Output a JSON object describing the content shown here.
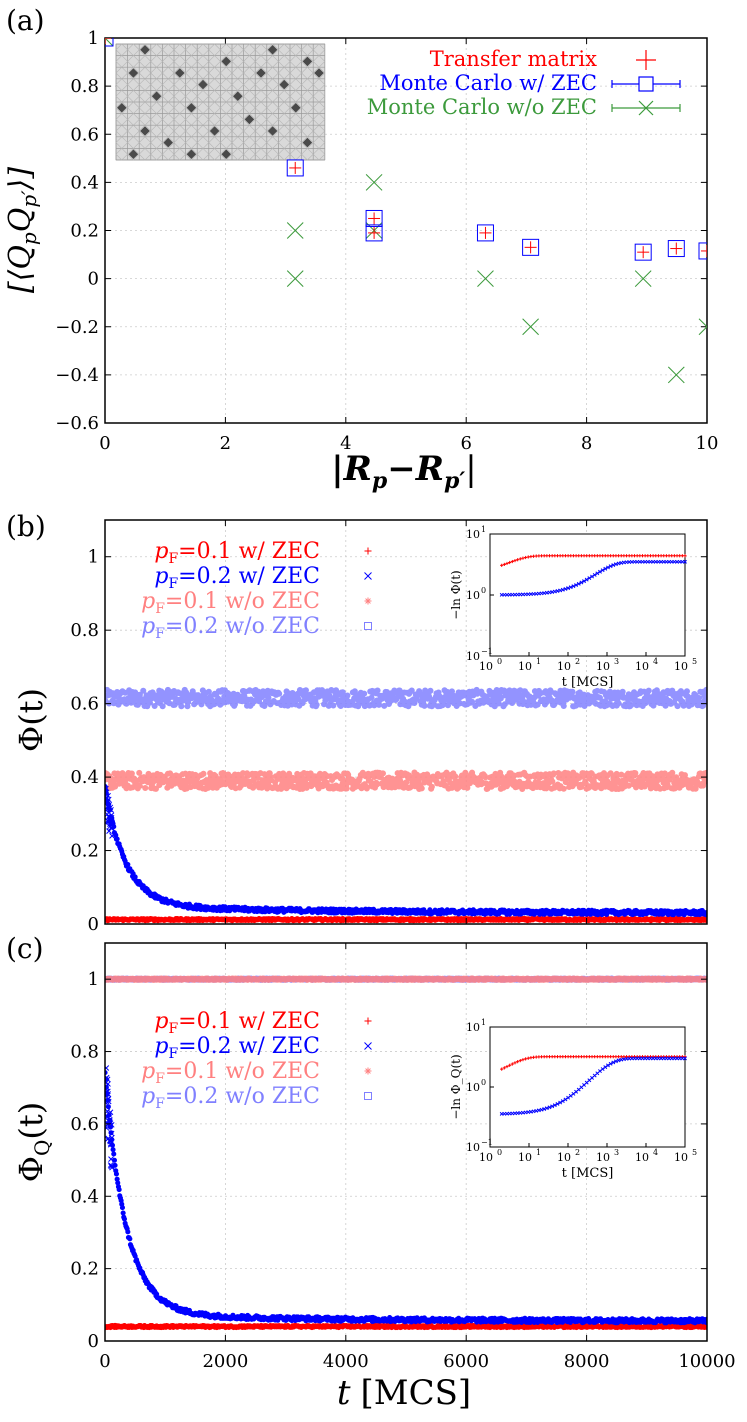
{
  "chart_data": [
    {
      "panel": "(a)",
      "type": "scatter",
      "ylabel": "[⟨Q_p Q_p'⟩]",
      "xlabel": "|R_p−R_p'|",
      "xlim": [
        0,
        10
      ],
      "ylim": [
        -0.6,
        1
      ],
      "xticks": [
        "0",
        "2",
        "4",
        "6",
        "8",
        "10"
      ],
      "yticks": [
        "−0.6",
        "−0.4",
        "−0.2",
        "0",
        "0.2",
        "0.4",
        "0.6",
        "0.8",
        "1"
      ],
      "grid": true,
      "legend_position": "top-right",
      "series": [
        {
          "name": "Transfer matrix",
          "color": "#ff0000",
          "marker": "plus",
          "x": [
            0,
            3.16,
            4.47,
            4.47,
            6.32,
            7.07,
            8.94,
            9.49,
            10
          ],
          "y": [
            1,
            0.46,
            0.25,
            0.19,
            0.19,
            0.13,
            0.11,
            0.125,
            0.115
          ]
        },
        {
          "name": "Monte Carlo w/ ZEC",
          "color": "#0000ff",
          "marker": "square",
          "x": [
            0,
            3.16,
            4.47,
            4.47,
            6.32,
            7.07,
            8.94,
            9.49,
            10
          ],
          "y": [
            1,
            0.46,
            0.25,
            0.19,
            0.19,
            0.13,
            0.11,
            0.125,
            0.115
          ]
        },
        {
          "name": "Monte Carlo w/o ZEC",
          "color": "#3c9a3c",
          "marker": "x",
          "x": [
            0,
            3.16,
            3.16,
            4.47,
            4.47,
            6.32,
            7.07,
            8.94,
            9.49,
            10
          ],
          "y": [
            1,
            0.2,
            0,
            0.4,
            0.2,
            0,
            -0.2,
            0,
            -0.4,
            -0.2
          ]
        }
      ]
    },
    {
      "panel": "(b)",
      "type": "scatter",
      "ylabel": "Φ(t)",
      "xlim": [
        0,
        10000
      ],
      "ylim": [
        0,
        1.1
      ],
      "yticks": [
        "0",
        "0.2",
        "0.4",
        "0.6",
        "0.8",
        "1"
      ],
      "grid": true,
      "legend_position": "top-left",
      "series": [
        {
          "name": "p_F=0.1 w/ ZEC",
          "color": "#ff0000",
          "marker": "plus",
          "model": "plateau",
          "value": 0.012
        },
        {
          "name": "p_F=0.2 w/ ZEC",
          "color": "#0000ff",
          "marker": "x",
          "model": "decay",
          "start": 0.35,
          "plateau": 0.03
        },
        {
          "name": "p_F=0.1 w/o ZEC",
          "color": "#ff8080",
          "marker": "star",
          "model": "plateau",
          "value": 0.39
        },
        {
          "name": "p_F=0.2 w/o ZEC",
          "color": "#8080ff",
          "marker": "square",
          "model": "plateau",
          "value": 0.615
        }
      ],
      "inset": {
        "ylabel": "−ln Φ(t)",
        "xlabel": "t [MCS]",
        "scale": "log-log",
        "xlim": [
          1,
          100000
        ],
        "ylim": [
          0.1,
          10
        ],
        "series": [
          {
            "name": "p_F=0.1 w/ ZEC",
            "color": "#ff0000",
            "start": 2.2,
            "plateau": 4.4
          },
          {
            "name": "p_F=0.2 w/ ZEC",
            "color": "#0000ff",
            "start": 1.0,
            "plateau": 3.5
          }
        ]
      }
    },
    {
      "panel": "(c)",
      "type": "scatter",
      "ylabel": "Φ_Q(t)",
      "xlabel": "t [MCS]",
      "xlim": [
        0,
        10000
      ],
      "ylim": [
        0,
        1.1
      ],
      "xticks": [
        "0",
        "2000",
        "4000",
        "6000",
        "8000",
        "10000"
      ],
      "yticks": [
        "0",
        "0.2",
        "0.4",
        "0.6",
        "0.8",
        "1"
      ],
      "grid": true,
      "legend_position": "left",
      "series": [
        {
          "name": "p_F=0.1 w/ ZEC",
          "color": "#ff0000",
          "marker": "plus",
          "model": "plateau",
          "value": 0.04
        },
        {
          "name": "p_F=0.2 w/ ZEC",
          "color": "#0000ff",
          "marker": "x",
          "model": "decay",
          "start": 0.72,
          "plateau": 0.055
        },
        {
          "name": "p_F=0.1 w/o ZEC",
          "color": "#ff8080",
          "marker": "star",
          "model": "plateau",
          "value": 1.0
        },
        {
          "name": "p_F=0.2 w/o ZEC",
          "color": "#8080ff",
          "marker": "square",
          "model": "plateau",
          "value": 1.0
        }
      ],
      "inset": {
        "ylabel": "−ln Φ_Q(t)",
        "xlabel": "t [MCS]",
        "scale": "log-log",
        "xlim": [
          1,
          100000
        ],
        "ylim": [
          0.1,
          10
        ],
        "series": [
          {
            "name": "p_F=0.1 w/ ZEC",
            "color": "#ff0000",
            "start": 1.2,
            "plateau": 3.2
          },
          {
            "name": "p_F=0.2 w/ ZEC",
            "color": "#0000ff",
            "start": 0.35,
            "plateau": 3.0
          }
        ]
      }
    }
  ],
  "labels": {
    "a": {
      "panel": "(a)",
      "ylabel_main": "[⟨Q",
      "ylabel_sub1": "p",
      "ylabel_mid": "Q",
      "ylabel_sub2": "p′",
      "ylabel_end": "⟩]",
      "xlabel_left": "|R",
      "xlabel_sub1": "p",
      "xlabel_mid": "−R",
      "xlabel_sub2": "p′",
      "xlabel_end": "|",
      "legend": [
        "Transfer matrix",
        "Monte Carlo w/ ZEC",
        "Monte Carlo w/o ZEC"
      ]
    },
    "b": {
      "panel": "(b)",
      "ylabel": "Φ(t)",
      "legend": [
        {
          "p": "p",
          "sub": "F",
          "rest": "=0.1 w/ ZEC"
        },
        {
          "p": "p",
          "sub": "F",
          "rest": "=0.2 w/ ZEC"
        },
        {
          "p": "p",
          "sub": "F",
          "rest": "=0.1 w/o ZEC"
        },
        {
          "p": "p",
          "sub": "F",
          "rest": "=0.2 w/o ZEC"
        }
      ],
      "inset_ylabel": "−ln Φ(t)",
      "inset_xlabel": "t [MCS]"
    },
    "c": {
      "panel": "(c)",
      "ylabel_main": "Φ",
      "ylabel_sub": "Q",
      "ylabel_end": "(t)",
      "legend": [
        {
          "p": "p",
          "sub": "F",
          "rest": "=0.1 w/ ZEC"
        },
        {
          "p": "p",
          "sub": "F",
          "rest": "=0.2 w/ ZEC"
        },
        {
          "p": "p",
          "sub": "F",
          "rest": "=0.1 w/o ZEC"
        },
        {
          "p": "p",
          "sub": "F",
          "rest": "=0.2 w/o ZEC"
        }
      ],
      "inset_ylabel": "−ln Φ_Q(t)",
      "inset_xlabel": "t [MCS]",
      "xlabel_t": "t",
      "xlabel_unit": "[MCS]"
    },
    "inset_xticks": [
      "10",
      "10",
      "10",
      "10",
      "10",
      "10"
    ],
    "inset_xtick_exp": [
      "0",
      "1",
      "2",
      "3",
      "4",
      "5"
    ],
    "inset_yticks": [
      "10",
      "10",
      "10"
    ],
    "inset_ytick_exp": [
      "−1",
      "0",
      "1"
    ]
  }
}
